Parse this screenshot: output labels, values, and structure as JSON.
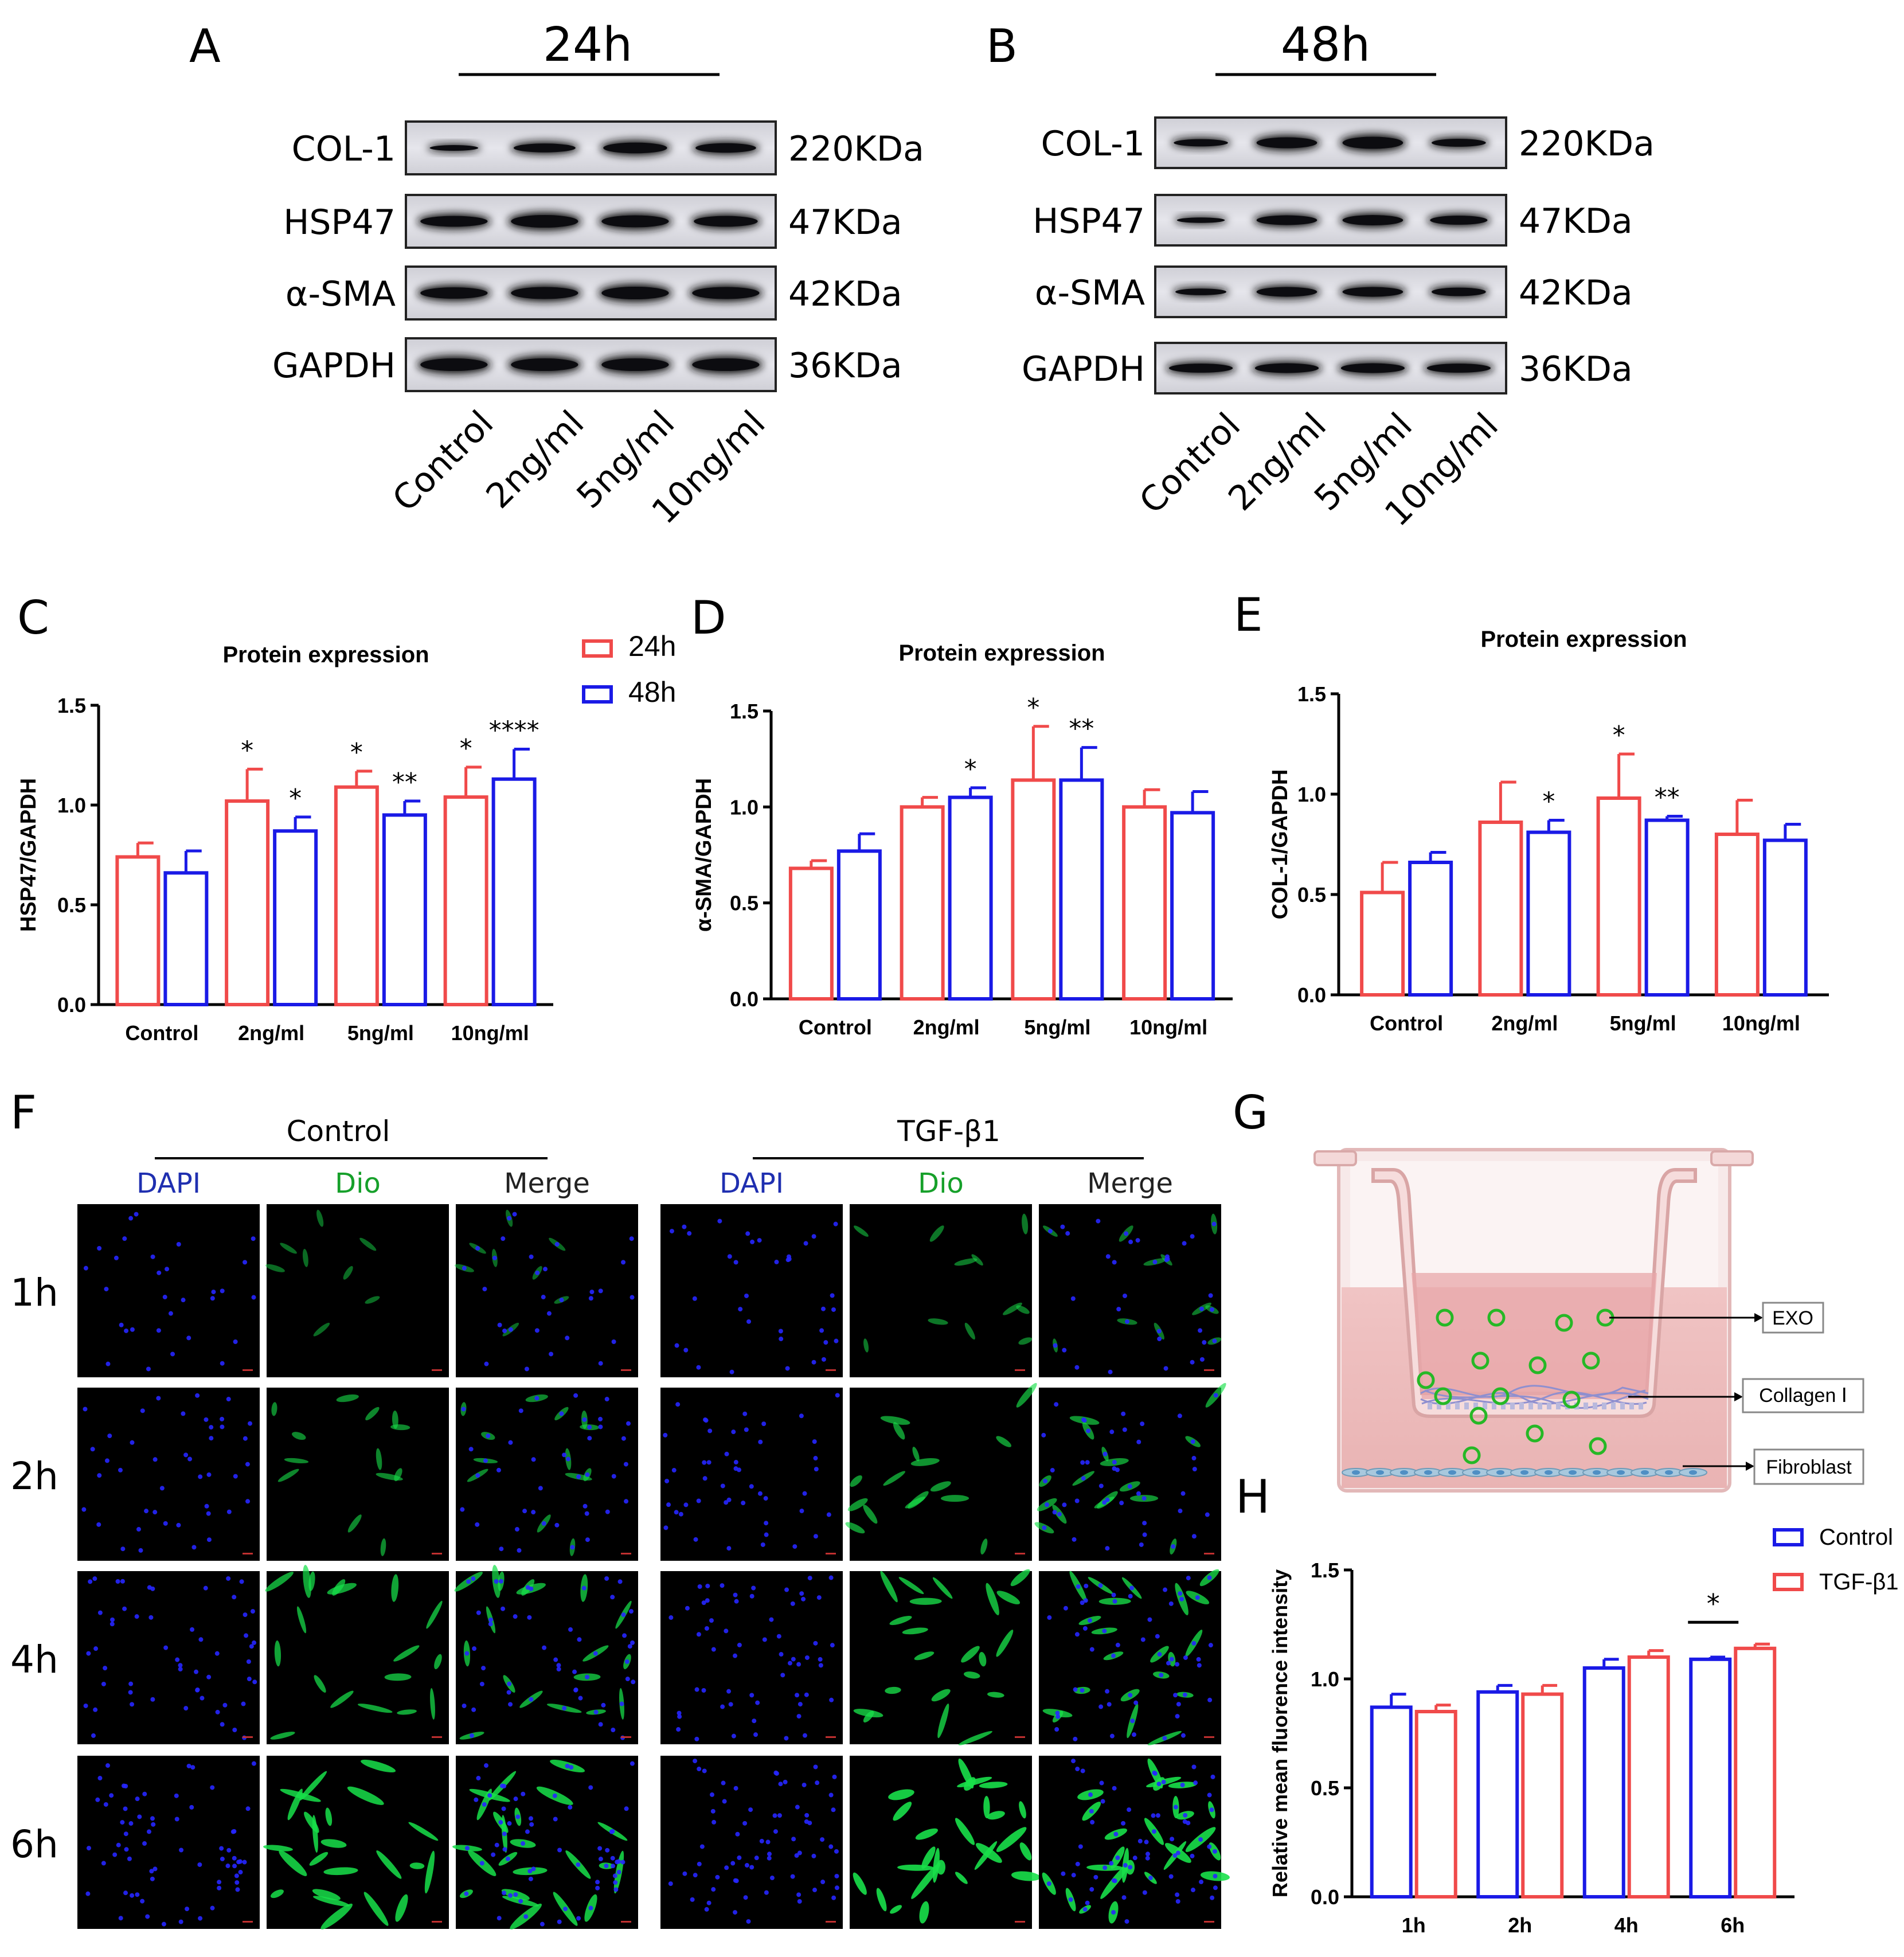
{
  "panels": {
    "A": {
      "letter": "A",
      "time_label": "24h",
      "proteins": [
        "COL-1",
        "HSP47",
        "α-SMA",
        "GAPDH"
      ],
      "sizes": [
        "220KDa",
        "47KDa",
        "42KDa",
        "36KDa"
      ],
      "lanes": [
        "Control",
        "2ng/ml",
        "5ng/ml",
        "10ng/ml"
      ]
    },
    "B": {
      "letter": "B",
      "time_label": "48h",
      "proteins": [
        "COL-1",
        "HSP47",
        "α-SMA",
        "GAPDH"
      ],
      "sizes": [
        "220KDa",
        "47KDa",
        "42KDa",
        "36KDa"
      ],
      "lanes": [
        "Control",
        "2ng/ml",
        "5ng/ml",
        "10ng/ml"
      ]
    },
    "C": {
      "letter": "C"
    },
    "D": {
      "letter": "D"
    },
    "E": {
      "letter": "E"
    },
    "F": {
      "letter": "F",
      "groups": [
        "Control",
        "TGF-β1"
      ],
      "channels": [
        "DAPI",
        "Dio",
        "Merge"
      ],
      "rows": [
        "1h",
        "2h",
        "4h",
        "6h"
      ]
    },
    "G": {
      "letter": "G",
      "labels": [
        "EXO",
        "Collagen Ⅰ",
        "Fibroblast"
      ]
    },
    "H": {
      "letter": "H"
    }
  },
  "colors": {
    "red": "#F04A4A",
    "blue": "#1A1AE6",
    "dapi": "#2626FF",
    "dio": "#18E04A",
    "dapi_text": "#1f2fb0",
    "dio_text": "#16a02a"
  },
  "chart_data": [
    {
      "id": "C",
      "type": "bar",
      "title": "Protein expression",
      "ylabel": "HSP47/GAPDH",
      "categories": [
        "Control",
        "2ng/ml",
        "5ng/ml",
        "10ng/ml"
      ],
      "ylim": [
        0,
        1.5
      ],
      "yticks": [
        "0.0",
        "0.5",
        "1.0",
        "1.5"
      ],
      "legend": [
        "24h",
        "48h"
      ],
      "series": [
        {
          "name": "24h",
          "color": "#F04A4A",
          "values": [
            0.74,
            1.02,
            1.09,
            1.04
          ],
          "errors": [
            0.07,
            0.16,
            0.08,
            0.15
          ],
          "sig": [
            "",
            "*",
            "*",
            "*"
          ]
        },
        {
          "name": "48h",
          "color": "#1A1AE6",
          "values": [
            0.66,
            0.87,
            0.95,
            1.13
          ],
          "errors": [
            0.11,
            0.07,
            0.07,
            0.15
          ],
          "sig": [
            "",
            "*",
            "**",
            "****"
          ]
        }
      ]
    },
    {
      "id": "D",
      "type": "bar",
      "title": "Protein expression",
      "ylabel": "α-SMA/GAPDH",
      "categories": [
        "Control",
        "2ng/ml",
        "5ng/ml",
        "10ng/ml"
      ],
      "ylim": [
        0,
        1.5
      ],
      "yticks": [
        "0.0",
        "0.5",
        "1.0",
        "1.5"
      ],
      "series": [
        {
          "color": "#F04A4A",
          "values": [
            0.68,
            1.0,
            1.14,
            1.0
          ],
          "errors": [
            0.04,
            0.05,
            0.28,
            0.09
          ],
          "sig": [
            "",
            "",
            "*",
            ""
          ]
        },
        {
          "color": "#1A1AE6",
          "values": [
            0.77,
            1.05,
            1.14,
            0.97
          ],
          "errors": [
            0.09,
            0.05,
            0.17,
            0.11
          ],
          "sig": [
            "",
            "*",
            "**",
            ""
          ]
        }
      ]
    },
    {
      "id": "E",
      "type": "bar",
      "title": "Protein expression",
      "ylabel": "COL-1/GAPDH",
      "categories": [
        "Control",
        "2ng/ml",
        "5ng/ml",
        "10ng/ml"
      ],
      "ylim": [
        0,
        1.5
      ],
      "yticks": [
        "0.0",
        "0.5",
        "1.0",
        "1.5"
      ],
      "series": [
        {
          "color": "#F04A4A",
          "values": [
            0.51,
            0.86,
            0.98,
            0.8
          ],
          "errors": [
            0.15,
            0.2,
            0.22,
            0.17
          ],
          "sig": [
            "",
            "",
            "*",
            ""
          ]
        },
        {
          "color": "#1A1AE6",
          "values": [
            0.66,
            0.81,
            0.87,
            0.77
          ],
          "errors": [
            0.05,
            0.06,
            0.02,
            0.08
          ],
          "sig": [
            "",
            "*",
            "**",
            ""
          ]
        }
      ]
    },
    {
      "id": "H",
      "type": "bar",
      "title": "",
      "ylabel": "Relative mean fluorence intensity",
      "categories": [
        "1h",
        "2h",
        "4h",
        "6h"
      ],
      "ylim": [
        0,
        1.5
      ],
      "yticks": [
        "0.0",
        "0.5",
        "1.0",
        "1.5"
      ],
      "legend": [
        "Control",
        "TGF-β1"
      ],
      "series": [
        {
          "name": "Control",
          "color": "#1A1AE6",
          "values": [
            0.87,
            0.94,
            1.05,
            1.09
          ],
          "errors": [
            0.06,
            0.03,
            0.04,
            0.01
          ]
        },
        {
          "name": "TGF-β1",
          "color": "#F04A4A",
          "values": [
            0.85,
            0.93,
            1.1,
            1.14
          ],
          "errors": [
            0.03,
            0.04,
            0.03,
            0.02
          ]
        }
      ],
      "sig_bracket": {
        "category": "6h",
        "label": "*"
      }
    }
  ]
}
